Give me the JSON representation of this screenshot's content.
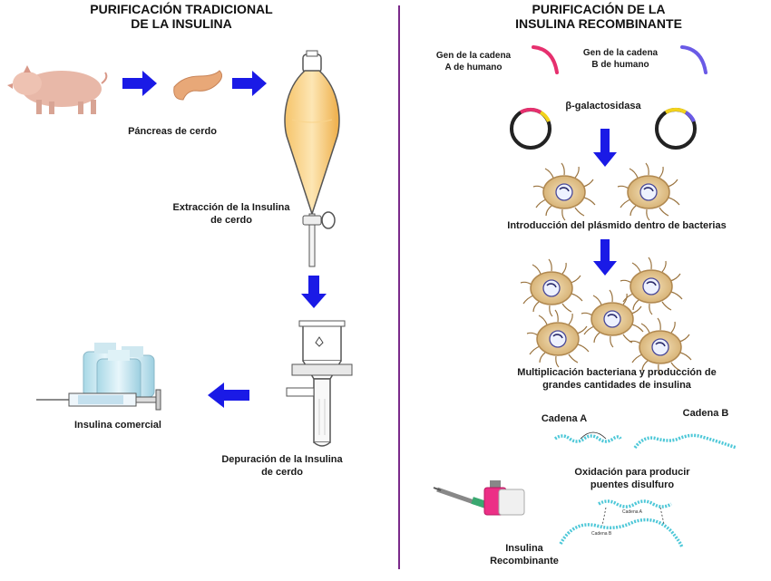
{
  "left": {
    "title_line1": "PURIFICACIÓN TRADICIONAL",
    "title_line2": "DE LA INSULINA",
    "pancreas_label": "Páncreas de cerdo",
    "extraction_line1": "Extracción de la Insulina",
    "extraction_line2": "de cerdo",
    "purification_line1": "Depuración de la Insulina",
    "purification_line2": "de cerdo",
    "commercial_label": "Insulina comercial"
  },
  "right": {
    "title_line1": "PURIFICACIÓN DE LA",
    "title_line2": "INSULINA RECOMBINANTE",
    "gene_a_line1": "Gen de la cadena",
    "gene_a_line2": "A de humano",
    "gene_b_line1": "Gen de la cadena",
    "gene_b_line2": "B de humano",
    "galactosidase_label": "β-galactosidasa",
    "introduction_label": "Introducción del plásmido dentro de bacterias",
    "multiplication_line1": "Multiplicación bacteriana y producción de",
    "multiplication_line2": "grandes cantidades de insulina",
    "chain_a_label": "Cadena A",
    "chain_b_label": "Cadena B",
    "oxidation_line1": "Oxidación para producir",
    "oxidation_line2": "puentes disulfuro",
    "recombinant_line1": "Insulina",
    "recombinant_line2": "Recombinante",
    "mini_chain_a": "Cadena A",
    "mini_chain_b": "Cadena B"
  },
  "colors": {
    "arrow_blue": "#1a1ae6",
    "divider_purple": "#7a2a8a",
    "gene_a_pink": "#e6306e",
    "gene_b_violet": "#6a5ae6",
    "cytoplasm": "#e2c48e",
    "chain_cyan": "#4ec8d8"
  }
}
